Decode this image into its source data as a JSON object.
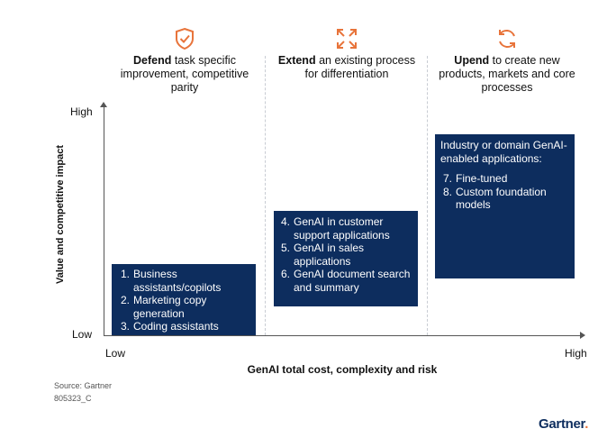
{
  "columns": [
    {
      "bold": "Defend",
      "rest": " task specific improvement, competitive parity",
      "icon": "shield-check-icon"
    },
    {
      "bold": "Extend",
      "rest": " an existing process for differentiation",
      "icon": "expand-arrows-icon"
    },
    {
      "bold": "Upend",
      "rest": " to create new products, markets and core processes",
      "icon": "refresh-cycle-icon"
    }
  ],
  "axes": {
    "y_label": "Value and competitive impact",
    "y_high": "High",
    "y_low": "Low",
    "x_label": "GenAI total cost, complexity and risk",
    "x_low": "Low",
    "x_high": "High"
  },
  "boxes": [
    {
      "items": [
        {
          "num": "1.",
          "text": "Business assistants/copilots"
        },
        {
          "num": "2.",
          "text": "Marketing copy generation"
        },
        {
          "num": "3.",
          "text": "Coding assistants"
        }
      ]
    },
    {
      "items": [
        {
          "num": "4.",
          "text": "GenAI in customer support applications"
        },
        {
          "num": "5.",
          "text": "GenAI in sales applications"
        },
        {
          "num": "6.",
          "text": "GenAI document search and summary"
        }
      ]
    },
    {
      "heading": "Industry or domain GenAI-enabled applications:",
      "items": [
        {
          "num": "7.",
          "text": "Fine-tuned"
        },
        {
          "num": "8.",
          "text": "Custom foundation models"
        }
      ]
    }
  ],
  "footer": {
    "source": "Source: Gartner",
    "code": "805323_C",
    "brand": "Gartner",
    "brand_dot": "."
  },
  "colors": {
    "accent": "#e8743b",
    "box": "#0d2d5e"
  }
}
